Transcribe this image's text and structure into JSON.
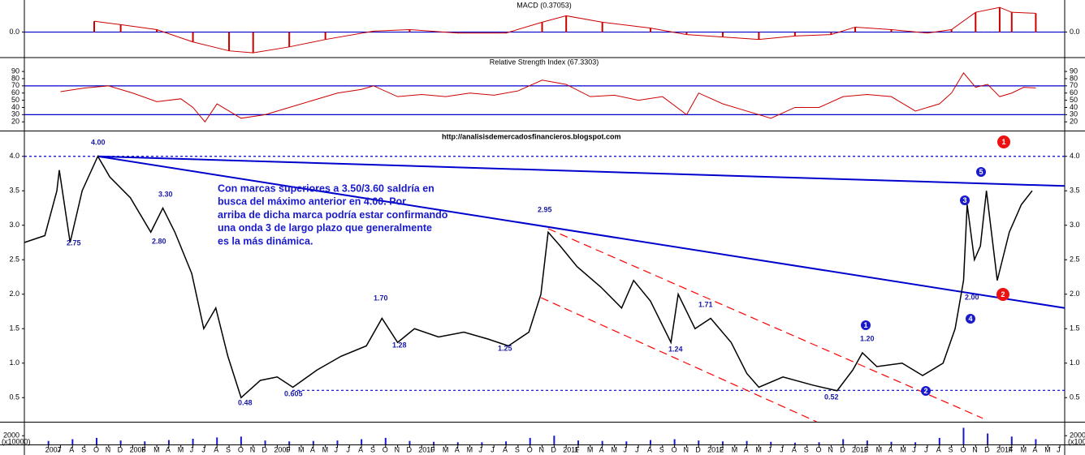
{
  "watermark": "http://analisisdemercadosfinancieros.blogspot.com",
  "comment": [
    "Con marcas superiores a 3.50/3.60 saldría en",
    "busca del máximo anterior en 4.00. Por",
    "arriba de dicha marca podría estar confirmando",
    "una onda 3 de largo plazo que generalmente",
    "es la más dinámica."
  ],
  "price_labels": [
    "4.00",
    "3.30",
    "2.75",
    "2.80",
    "0.48",
    "0.605",
    "1.70",
    "1.28",
    "1.25",
    "2.95",
    "1.24",
    "1.71",
    "1.20",
    "0.52",
    "2.00"
  ],
  "waves_blue": [
    "1",
    "2",
    "3",
    "4",
    "5"
  ],
  "waves_red": [
    "1",
    "2"
  ],
  "chart_data": [
    {
      "type": "line",
      "title": "MACD (0.37053)",
      "histogram": true,
      "color": "#cc0000",
      "xlim": [
        -2,
        84.4
      ],
      "ylim": [
        -0.5,
        0.6
      ],
      "yticks": [
        {
          "value": 0,
          "label": "0.0"
        }
      ],
      "hlines": [
        0
      ],
      "hline_color": "#0000cc",
      "x": [
        3.8,
        6,
        9,
        12,
        15,
        17,
        20,
        23,
        27,
        30,
        34,
        38,
        41,
        43,
        46,
        50,
        53,
        56,
        59,
        62,
        65,
        67,
        70,
        73,
        75,
        77,
        79,
        80,
        82
      ],
      "values": [
        0.22,
        0.15,
        0.05,
        -0.2,
        -0.38,
        -0.42,
        -0.3,
        -0.15,
        0.02,
        0.05,
        -0.02,
        -0.02,
        0.2,
        0.33,
        0.2,
        0.08,
        -0.05,
        -0.1,
        -0.15,
        -0.08,
        -0.05,
        0.1,
        0.05,
        -0.02,
        0.05,
        0.4,
        0.5,
        0.4,
        0.38
      ]
    },
    {
      "type": "line",
      "title": "Relative Strength Index (67.3303)",
      "color": "#cc0000",
      "xlim": [
        -2,
        84.4
      ],
      "ylim": [
        9,
        107
      ],
      "yticks": [
        20,
        30,
        40,
        50,
        60,
        70,
        80,
        90
      ],
      "hlines": [
        70,
        30
      ],
      "hline_color": "#0000cc",
      "x": [
        1,
        3,
        5,
        7,
        9,
        11,
        12,
        13,
        14,
        16,
        18,
        20,
        22,
        24,
        26,
        27,
        29,
        31,
        33,
        35,
        37,
        39,
        41,
        43,
        45,
        47,
        49,
        51,
        53,
        54,
        56,
        58,
        60,
        62,
        64,
        66,
        68,
        70,
        72,
        74,
        75,
        76,
        77,
        78,
        79,
        80,
        81,
        82
      ],
      "values": [
        62,
        67,
        70,
        60,
        48,
        52,
        40,
        20,
        45,
        25,
        30,
        40,
        50,
        60,
        65,
        70,
        55,
        58,
        55,
        60,
        57,
        63,
        78,
        72,
        55,
        57,
        50,
        55,
        30,
        60,
        45,
        35,
        25,
        40,
        40,
        55,
        58,
        55,
        35,
        45,
        60,
        88,
        68,
        72,
        55,
        60,
        68,
        67
      ]
    },
    {
      "type": "line",
      "color": "#000000",
      "xlim": [
        -2,
        84.4
      ],
      "ylim": [
        0.15,
        4.35
      ],
      "yticks": [
        0.5,
        {
          "value": 1,
          "label": "1.0"
        },
        1.5,
        {
          "value": 2,
          "label": "2.0"
        },
        2.5,
        {
          "value": 3,
          "label": "3.0"
        },
        3.5,
        {
          "value": 4,
          "label": "4.0"
        }
      ],
      "hlines": [
        4,
        0.605
      ],
      "hline_color": "#0000cc",
      "x": [
        -2,
        -0.3,
        0.7,
        0.9,
        1.8,
        2.8,
        4.1,
        5.1,
        6.8,
        8.5,
        9.5,
        10.5,
        11.9,
        12.9,
        13.9,
        14.9,
        16,
        17.6,
        19,
        20.3,
        22.3,
        24.3,
        26.4,
        27.7,
        29,
        30.4,
        32.4,
        34.5,
        36.5,
        38.2,
        39.9,
        40.9,
        41.5,
        42.5,
        43.9,
        45.9,
        47.6,
        48.6,
        50,
        51.7,
        52.3,
        53.7,
        55,
        56.7,
        58,
        59,
        61,
        63.5,
        65.5,
        66.8,
        67.6,
        68.8,
        70.9,
        72.6,
        74.3,
        75.3,
        76,
        76.3,
        76.9,
        77.4,
        77.9,
        78.8,
        79.8,
        80.8,
        81.7
      ],
      "values": [
        2.75,
        2.85,
        3.5,
        3.8,
        2.75,
        3.5,
        4.0,
        3.7,
        3.4,
        2.9,
        3.25,
        2.9,
        2.3,
        1.5,
        1.8,
        1.1,
        0.5,
        0.75,
        0.8,
        0.65,
        0.9,
        1.1,
        1.25,
        1.65,
        1.3,
        1.5,
        1.38,
        1.45,
        1.35,
        1.25,
        1.45,
        2.0,
        2.9,
        2.7,
        2.4,
        2.1,
        1.8,
        2.2,
        1.9,
        1.3,
        2.0,
        1.5,
        1.65,
        1.3,
        0.85,
        0.65,
        0.8,
        0.68,
        0.6,
        0.9,
        1.15,
        0.95,
        1.0,
        0.82,
        1.0,
        1.5,
        2.2,
        3.3,
        2.5,
        2.7,
        3.5,
        2.2,
        2.9,
        3.3,
        3.5
      ],
      "trendlines": [
        {
          "x": [
            4.1,
            84.4
          ],
          "values": [
            4.0,
            3.57
          ],
          "color": "#0000cc",
          "dash": false
        },
        {
          "x": [
            4.1,
            84.4
          ],
          "values": [
            4.0,
            1.8
          ],
          "color": "#0000cc",
          "dash": false
        },
        {
          "x": [
            41.5,
            77.6
          ],
          "values": [
            2.95,
            0.2
          ],
          "color": "#ff0000",
          "dash": true
        },
        {
          "x": [
            40.9,
            63.8
          ],
          "values": [
            1.95,
            0.15
          ],
          "color": "#ff0000",
          "dash": true
        }
      ],
      "xticks": [
        {
          "value": 0,
          "label": "2007"
        },
        {
          "value": 1,
          "label": "J"
        },
        {
          "value": 2,
          "label": "A"
        },
        {
          "value": 3,
          "label": "S"
        },
        {
          "value": 4,
          "label": "O"
        },
        {
          "value": 5,
          "label": "N"
        },
        {
          "value": 6,
          "label": "D"
        },
        {
          "value": 7,
          "label": "2008"
        },
        {
          "value": 8,
          "label": "F"
        },
        {
          "value": 9,
          "label": "M"
        },
        {
          "value": 10,
          "label": "A"
        },
        {
          "value": 11,
          "label": "M"
        },
        {
          "value": 12,
          "label": "J"
        },
        {
          "value": 13,
          "label": "J"
        },
        {
          "value": 14,
          "label": "A"
        },
        {
          "value": 15,
          "label": "S"
        },
        {
          "value": 16,
          "label": "O"
        },
        {
          "value": 17,
          "label": "N"
        },
        {
          "value": 18,
          "label": "D"
        },
        {
          "value": 19,
          "label": "2009"
        },
        {
          "value": 20,
          "label": "F"
        },
        {
          "value": 21,
          "label": "M"
        },
        {
          "value": 22,
          "label": "A"
        },
        {
          "value": 23,
          "label": "M"
        },
        {
          "value": 24,
          "label": "J"
        },
        {
          "value": 25,
          "label": "J"
        },
        {
          "value": 26,
          "label": "A"
        },
        {
          "value": 27,
          "label": "S"
        },
        {
          "value": 28,
          "label": "O"
        },
        {
          "value": 29,
          "label": "N"
        },
        {
          "value": 30,
          "label": "D"
        },
        {
          "value": 31,
          "label": "2010"
        },
        {
          "value": 32,
          "label": "F"
        },
        {
          "value": 33,
          "label": "M"
        },
        {
          "value": 34,
          "label": "A"
        },
        {
          "value": 35,
          "label": "M"
        },
        {
          "value": 36,
          "label": "J"
        },
        {
          "value": 37,
          "label": "J"
        },
        {
          "value": 38,
          "label": "A"
        },
        {
          "value": 39,
          "label": "S"
        },
        {
          "value": 40,
          "label": "O"
        },
        {
          "value": 41,
          "label": "N"
        },
        {
          "value": 42,
          "label": "D"
        },
        {
          "value": 43,
          "label": "2011"
        },
        {
          "value": 44,
          "label": "F"
        },
        {
          "value": 45,
          "label": "M"
        },
        {
          "value": 46,
          "label": "A"
        },
        {
          "value": 47,
          "label": "M"
        },
        {
          "value": 48,
          "label": "J"
        },
        {
          "value": 49,
          "label": "J"
        },
        {
          "value": 50,
          "label": "A"
        },
        {
          "value": 51,
          "label": "S"
        },
        {
          "value": 52,
          "label": "O"
        },
        {
          "value": 53,
          "label": "N"
        },
        {
          "value": 54,
          "label": "D"
        },
        {
          "value": 55,
          "label": "2012"
        },
        {
          "value": 56,
          "label": "F"
        },
        {
          "value": 57,
          "label": "M"
        },
        {
          "value": 58,
          "label": "A"
        },
        {
          "value": 59,
          "label": "M"
        },
        {
          "value": 60,
          "label": "J"
        },
        {
          "value": 61,
          "label": "J"
        },
        {
          "value": 62,
          "label": "A"
        },
        {
          "value": 63,
          "label": "S"
        },
        {
          "value": 64,
          "label": "O"
        },
        {
          "value": 65,
          "label": "N"
        },
        {
          "value": 66,
          "label": "D"
        },
        {
          "value": 67,
          "label": "2013"
        },
        {
          "value": 68,
          "label": "F"
        },
        {
          "value": 69,
          "label": "M"
        },
        {
          "value": 70,
          "label": "A"
        },
        {
          "value": 71,
          "label": "M"
        },
        {
          "value": 72,
          "label": "J"
        },
        {
          "value": 73,
          "label": "J"
        },
        {
          "value": 74,
          "label": "A"
        },
        {
          "value": 75,
          "label": "S"
        },
        {
          "value": 76,
          "label": "O"
        },
        {
          "value": 77,
          "label": "N"
        },
        {
          "value": 78,
          "label": "D"
        },
        {
          "value": 79,
          "label": "2014"
        },
        {
          "value": 80,
          "label": "F"
        },
        {
          "value": 81,
          "label": "M"
        },
        {
          "value": 82,
          "label": "A"
        },
        {
          "value": 83,
          "label": "M"
        },
        {
          "value": 84,
          "label": "J"
        }
      ]
    },
    {
      "type": "bar",
      "color": "#1a1acc",
      "xlim": [
        -2,
        84.4
      ],
      "ylim": [
        0,
        5000
      ],
      "yticks": [
        2000
      ],
      "yunit": "(x10000)",
      "x": [
        0,
        2,
        4,
        6,
        8,
        10,
        12,
        14,
        16,
        18,
        20,
        22,
        24,
        26,
        28,
        30,
        32,
        34,
        36,
        38,
        40,
        42,
        44,
        46,
        48,
        50,
        52,
        54,
        56,
        58,
        60,
        62,
        64,
        66,
        68,
        70,
        72,
        74,
        76,
        78,
        80,
        82
      ],
      "values": [
        800,
        1200,
        1500,
        900,
        700,
        1000,
        1300,
        1600,
        1800,
        900,
        700,
        800,
        900,
        1200,
        1500,
        800,
        600,
        500,
        500,
        700,
        1500,
        2000,
        900,
        800,
        700,
        1000,
        1200,
        900,
        700,
        800,
        600,
        400,
        500,
        1200,
        900,
        600,
        500,
        1500,
        3800,
        2500,
        1800,
        1200
      ]
    }
  ]
}
